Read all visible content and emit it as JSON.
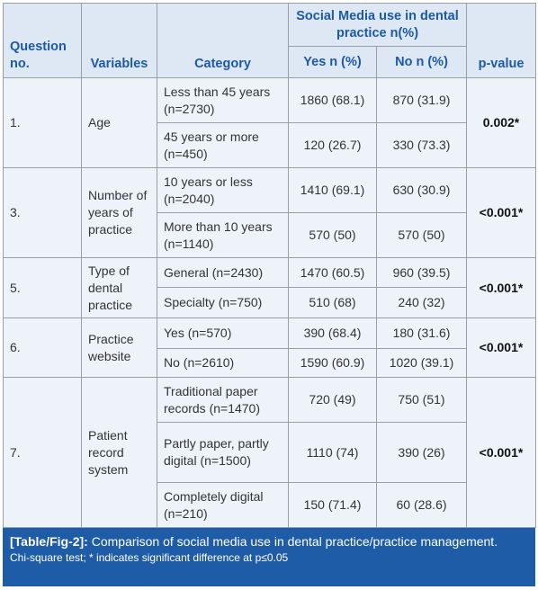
{
  "table": {
    "headers": {
      "question": "Question no.",
      "variables": "Variables",
      "category": "Category",
      "group": "Social Media use in dental practice n(%)",
      "yes": "Yes n (%)",
      "no": "No n (%)",
      "p": "p-value"
    },
    "groups": [
      {
        "question": "1.",
        "variable": "Age",
        "p": "0.002*",
        "rows": [
          [
            "Less than 45 years (n=2730)",
            "1860 (68.1)",
            "870 (31.9)"
          ],
          [
            "45 years or more (n=450)",
            "120 (26.7)",
            "330 (73.3)"
          ]
        ]
      },
      {
        "question": "3.",
        "variable": "Number of years of practice",
        "p": "<0.001*",
        "rows": [
          [
            "10 years or less (n=2040)",
            "1410 (69.1)",
            "630 (30.9)"
          ],
          [
            "More than 10 years (n=1140)",
            "570 (50)",
            "570 (50)"
          ]
        ]
      },
      {
        "question": "5.",
        "variable": "Type of dental practice",
        "p": "<0.001*",
        "rows": [
          [
            "General (n=2430)",
            "1470 (60.5)",
            "960 (39.5)"
          ],
          [
            "Specialty (n=750)",
            "510 (68)",
            "240 (32)"
          ]
        ]
      },
      {
        "question": "6.",
        "variable": "Practice website",
        "p": "<0.001*",
        "rows": [
          [
            "Yes (n=570)",
            "390 (68.4)",
            "180 (31.6)"
          ],
          [
            "No (n=2610)",
            "1590 (60.9)",
            "1020 (39.1)"
          ]
        ]
      },
      {
        "question": "7.",
        "variable": "Patient record system",
        "p": "<0.001*",
        "rows": [
          [
            "Traditional paper records (n=1470)",
            "720 (49)",
            "750 (51)"
          ],
          [
            "Partly paper, partly digital (n=1500)",
            "1110 (74)",
            "390 (26)"
          ],
          [
            "Completely digital (n=210)",
            "150 (71.4)",
            "60 (28.6)"
          ]
        ]
      }
    ]
  },
  "caption": {
    "label": "[Table/Fig-2]:",
    "text": "Comparison of social media use in dental practice/practice management.",
    "note": "Chi-square test; * indicates significant difference at p≤0.05"
  }
}
